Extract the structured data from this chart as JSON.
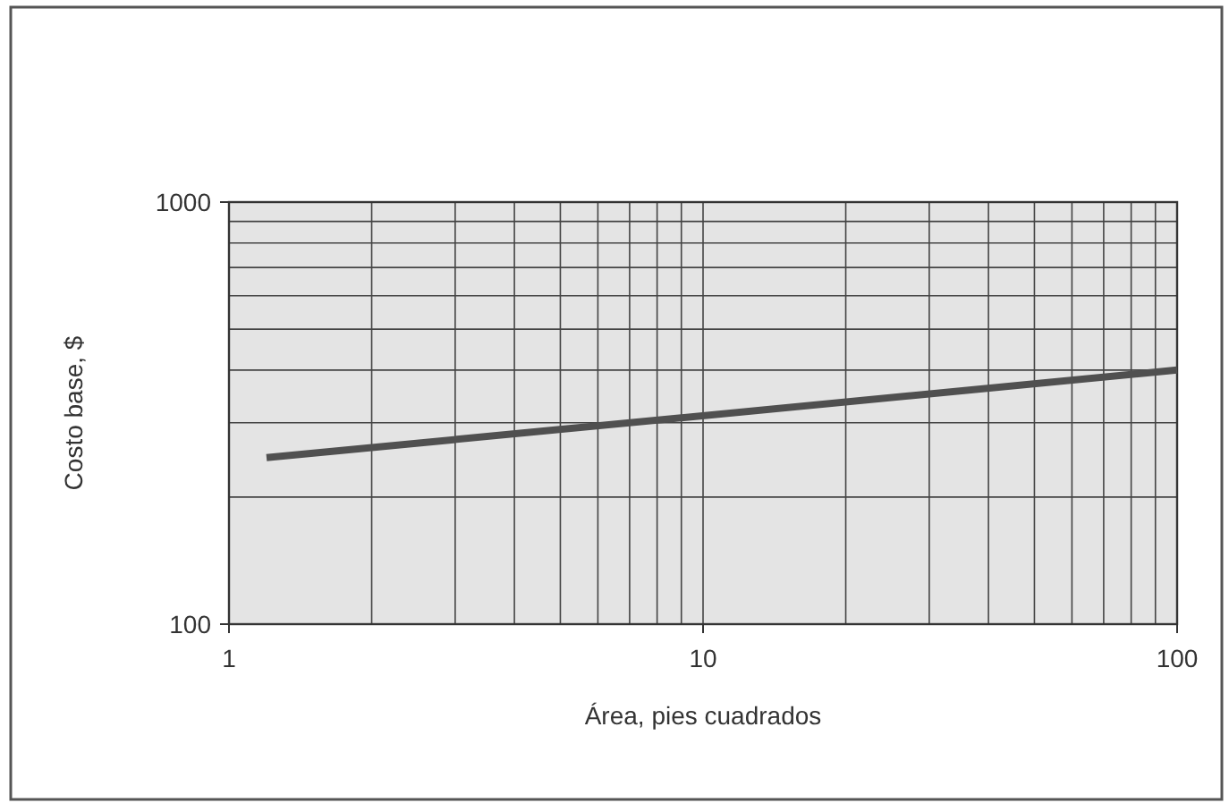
{
  "chart_data": {
    "type": "line",
    "xlabel": "Área, pies cuadrados",
    "ylabel": "Costo base, $",
    "x": [
      1.2,
      100
    ],
    "series": [
      {
        "color": "#505050",
        "values": [
          248,
          400
        ]
      }
    ],
    "log": "xy",
    "xlim": [
      1,
      100
    ],
    "ylim": [
      100,
      1000
    ],
    "xticks": [
      1,
      10,
      100
    ],
    "yticks": [
      100,
      1000
    ],
    "grid": true,
    "line_style": "solid"
  }
}
